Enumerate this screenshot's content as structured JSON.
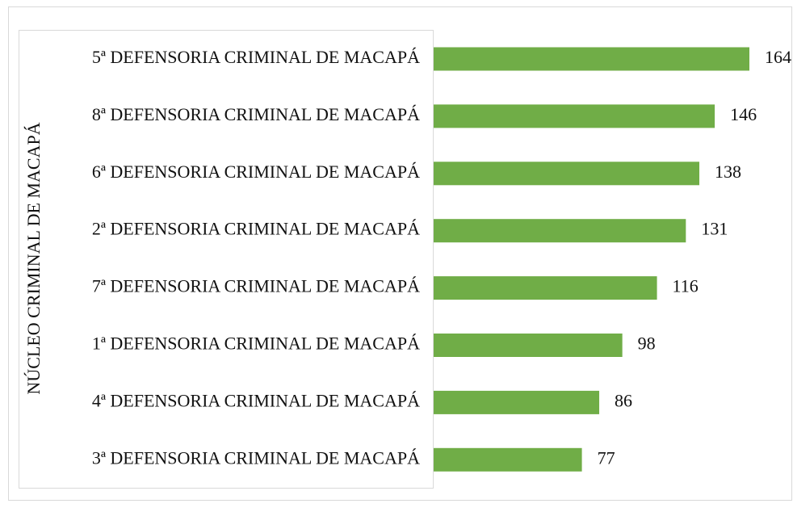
{
  "chart_data": {
    "type": "bar",
    "orientation": "horizontal",
    "y_label": "NÚCLEO CRIMINAL DE MACAPÁ",
    "categories": [
      "5ª DEFENSORIA CRIMINAL DE MACAPÁ",
      "8ª DEFENSORIA CRIMINAL DE MACAPÁ",
      "6ª DEFENSORIA CRIMINAL DE MACAPÁ",
      "2ª DEFENSORIA CRIMINAL DE MACAPÁ",
      "7ª DEFENSORIA CRIMINAL DE MACAPÁ",
      "1ª DEFENSORIA CRIMINAL DE MACAPÁ",
      "4ª DEFENSORIA CRIMINAL DE MACAPÁ",
      "3ª DEFENSORIA CRIMINAL DE MACAPÁ"
    ],
    "values": [
      164,
      146,
      138,
      131,
      116,
      98,
      86,
      77
    ],
    "color": "#70ad47"
  }
}
